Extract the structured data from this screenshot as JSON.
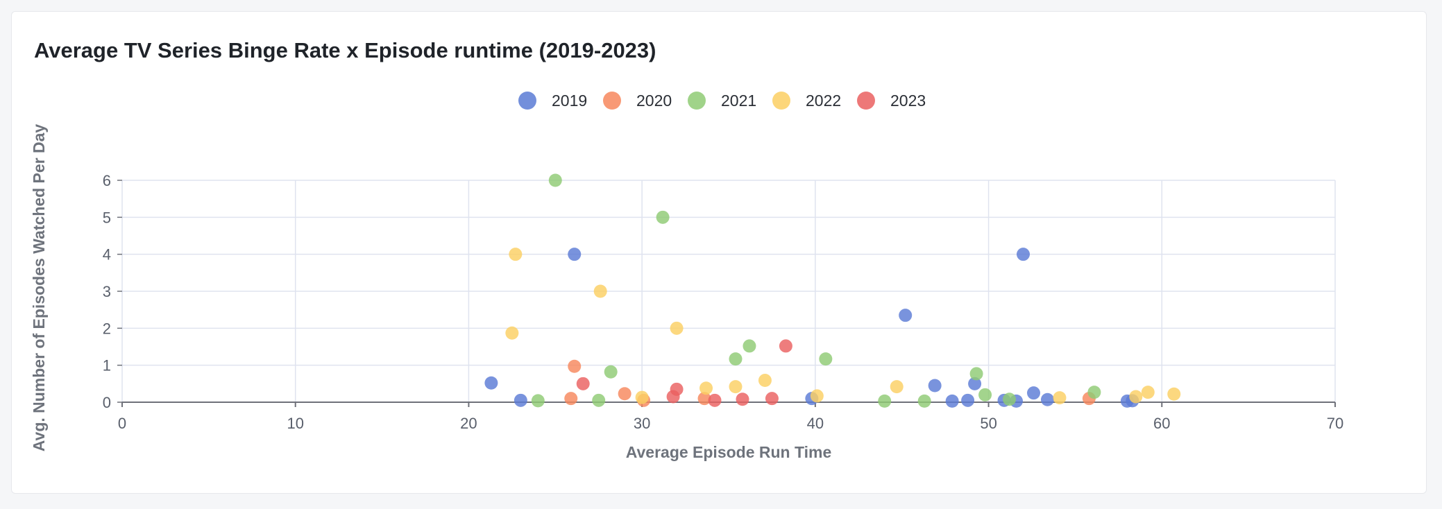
{
  "chart_data": {
    "type": "scatter",
    "title": "Average TV Series Binge Rate x Episode runtime (2019-2023)",
    "xlabel": "Average Episode Run Time",
    "ylabel": "Avg. Number of Episodes Watched Per Day",
    "xlim": [
      0,
      70
    ],
    "ylim": [
      0,
      6
    ],
    "x_ticks": [
      0,
      10,
      20,
      30,
      40,
      50,
      60,
      70
    ],
    "y_ticks": [
      0,
      1,
      2,
      3,
      4,
      5,
      6
    ],
    "grid": true,
    "legend_position": "top-center",
    "series": [
      {
        "name": "2019",
        "color": "#5b7bd5",
        "points": [
          [
            21.3,
            0.52
          ],
          [
            23.0,
            0.05
          ],
          [
            26.1,
            4.0
          ],
          [
            39.8,
            0.1
          ],
          [
            45.2,
            2.35
          ],
          [
            46.9,
            0.45
          ],
          [
            47.9,
            0.03
          ],
          [
            48.8,
            0.05
          ],
          [
            49.2,
            0.5
          ],
          [
            50.9,
            0.05
          ],
          [
            51.6,
            0.03
          ],
          [
            52.0,
            4.0
          ],
          [
            52.6,
            0.25
          ],
          [
            53.4,
            0.07
          ],
          [
            58.0,
            0.03
          ],
          [
            58.3,
            0.04
          ]
        ]
      },
      {
        "name": "2020",
        "color": "#f7875d",
        "points": [
          [
            25.9,
            0.1
          ],
          [
            26.1,
            0.97
          ],
          [
            29.0,
            0.23
          ],
          [
            30.1,
            0.05
          ],
          [
            33.6,
            0.1
          ],
          [
            55.8,
            0.1
          ]
        ]
      },
      {
        "name": "2021",
        "color": "#8fcb74",
        "points": [
          [
            24.0,
            0.04
          ],
          [
            25.0,
            6.0
          ],
          [
            27.5,
            0.05
          ],
          [
            28.2,
            0.82
          ],
          [
            31.2,
            5.0
          ],
          [
            35.4,
            1.17
          ],
          [
            36.2,
            1.52
          ],
          [
            40.6,
            1.17
          ],
          [
            44.0,
            0.03
          ],
          [
            46.3,
            0.03
          ],
          [
            49.3,
            0.77
          ],
          [
            49.8,
            0.2
          ],
          [
            51.2,
            0.08
          ],
          [
            56.1,
            0.27
          ]
        ]
      },
      {
        "name": "2022",
        "color": "#fbcf63",
        "points": [
          [
            22.5,
            1.87
          ],
          [
            22.7,
            4.0
          ],
          [
            27.6,
            3.0
          ],
          [
            30.0,
            0.13
          ],
          [
            32.0,
            2.0
          ],
          [
            33.7,
            0.38
          ],
          [
            35.4,
            0.42
          ],
          [
            37.1,
            0.59
          ],
          [
            40.1,
            0.17
          ],
          [
            44.7,
            0.42
          ],
          [
            54.1,
            0.12
          ],
          [
            58.5,
            0.15
          ],
          [
            59.2,
            0.27
          ],
          [
            60.7,
            0.22
          ]
        ]
      },
      {
        "name": "2023",
        "color": "#ea6060",
        "points": [
          [
            26.6,
            0.5
          ],
          [
            31.8,
            0.15
          ],
          [
            32.0,
            0.35
          ],
          [
            34.2,
            0.05
          ],
          [
            35.8,
            0.08
          ],
          [
            37.5,
            0.1
          ],
          [
            38.3,
            1.52
          ]
        ]
      }
    ]
  }
}
